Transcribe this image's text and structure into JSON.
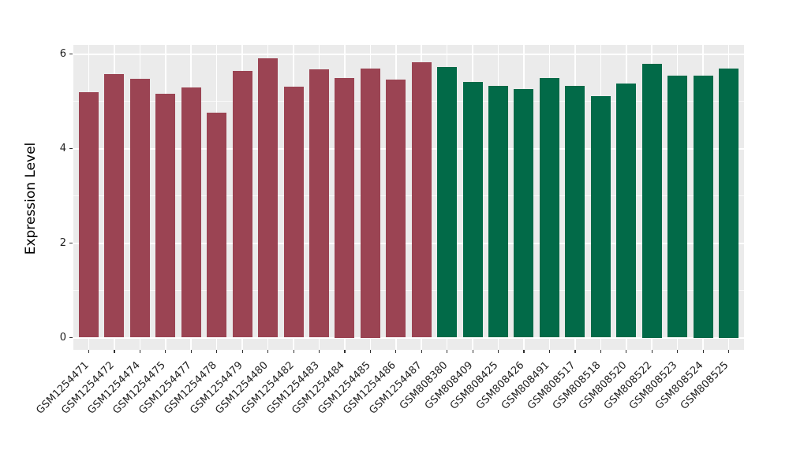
{
  "figure": {
    "background": "#FFFFFF"
  },
  "chart_data": {
    "type": "bar",
    "title": "",
    "xlabel": "",
    "ylabel": "Expression Level",
    "ylim": [
      0,
      6.3
    ],
    "yticks": [
      0,
      2,
      4,
      6
    ],
    "ytick_labels": [
      "0",
      "2",
      "4",
      "6"
    ],
    "yticks_minor": [
      1,
      3,
      5
    ],
    "grid": "on",
    "legend_position": "none",
    "panel_background": "#EBEBEB",
    "grid_color": "#FFFFFF",
    "tick_color": "#333333",
    "text_color": "#1F1F1F",
    "categories": [
      "GSM1254471",
      "GSM1254472",
      "GSM1254474",
      "GSM1254475",
      "GSM1254477",
      "GSM1254478",
      "GSM1254479",
      "GSM1254480",
      "GSM1254482",
      "GSM1254483",
      "GSM1254484",
      "GSM1254485",
      "GSM1254486",
      "GSM1254487",
      "GSM808380",
      "GSM808409",
      "GSM808425",
      "GSM808426",
      "GSM808491",
      "GSM808517",
      "GSM808518",
      "GSM808520",
      "GSM808522",
      "GSM808523",
      "GSM808524",
      "GSM808525"
    ],
    "values": [
      5.19,
      5.57,
      5.47,
      5.16,
      5.29,
      4.76,
      5.64,
      5.91,
      5.31,
      5.67,
      5.5,
      5.7,
      5.46,
      5.82,
      5.72,
      5.41,
      5.32,
      5.26,
      5.49,
      5.32,
      5.11,
      5.38,
      5.8,
      5.54,
      5.55,
      5.7
    ],
    "color_groups": [
      {
        "color": "#9B4453",
        "count": 14
      },
      {
        "color": "#026A48",
        "count": 12
      }
    ]
  }
}
